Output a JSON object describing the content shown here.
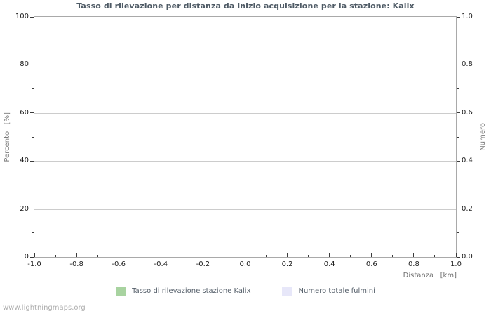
{
  "page": {
    "watermark": "www.lightningmaps.org"
  },
  "chart_data": {
    "type": "line",
    "title": "Tasso di rilevazione per distanza da inizio acquisizione per la stazione: Kalix",
    "grid": "horizontal-major-only",
    "plot_background": "#ffffff",
    "x_axis": {
      "label": "Distanza   [km]",
      "min": -1.0,
      "max": 1.0,
      "minor_step": 0.1,
      "major_ticks": [
        -1.0,
        -0.8,
        -0.6,
        -0.4,
        -0.2,
        0.0,
        0.2,
        0.4,
        0.6,
        0.8,
        1.0
      ],
      "tick_labels": [
        "-1.0",
        "-0.8",
        "-0.6",
        "-0.4",
        "-0.2",
        "0.0",
        "0.2",
        "0.4",
        "0.6",
        "0.8",
        "1.0"
      ]
    },
    "y_axis_left": {
      "label": "Percento   [%]",
      "min": 0,
      "max": 100,
      "minor_step": 10,
      "major_ticks": [
        0,
        20,
        40,
        60,
        80,
        100
      ],
      "tick_labels": [
        "0",
        "20",
        "40",
        "60",
        "80",
        "100"
      ]
    },
    "y_axis_right": {
      "label": "Numero",
      "min": 0.0,
      "max": 1.0,
      "minor_step": 0.1,
      "major_ticks": [
        0.0,
        0.2,
        0.4,
        0.6,
        0.8,
        1.0
      ],
      "tick_labels": [
        "0.0",
        "0.2",
        "0.4",
        "0.6",
        "0.8",
        "1.0"
      ]
    },
    "legend": {
      "position": "bottom-center",
      "entries": [
        {
          "label": "Tasso di rilevazione stazione Kalix",
          "color": "#a8d3a0"
        },
        {
          "label": "Numero totale fulmini",
          "color": "#e7e7f9"
        }
      ]
    },
    "series": [
      {
        "name": "Tasso di rilevazione stazione Kalix",
        "axis": "left",
        "color": "#a8d3a0",
        "x": [],
        "values": []
      },
      {
        "name": "Numero totale fulmini",
        "axis": "right",
        "color": "#e7e7f9",
        "x": [],
        "values": []
      }
    ],
    "colors": {
      "title": "#4e5a65",
      "tick_label": "#1c1c1c",
      "tick_mark": "#3a3a3a",
      "gridline": "#cccccc",
      "plot_border": "#a9a9a9",
      "axis_title": "#7b7b7b",
      "legend_text": "#56606b",
      "watermark": "#aeaeae"
    }
  }
}
